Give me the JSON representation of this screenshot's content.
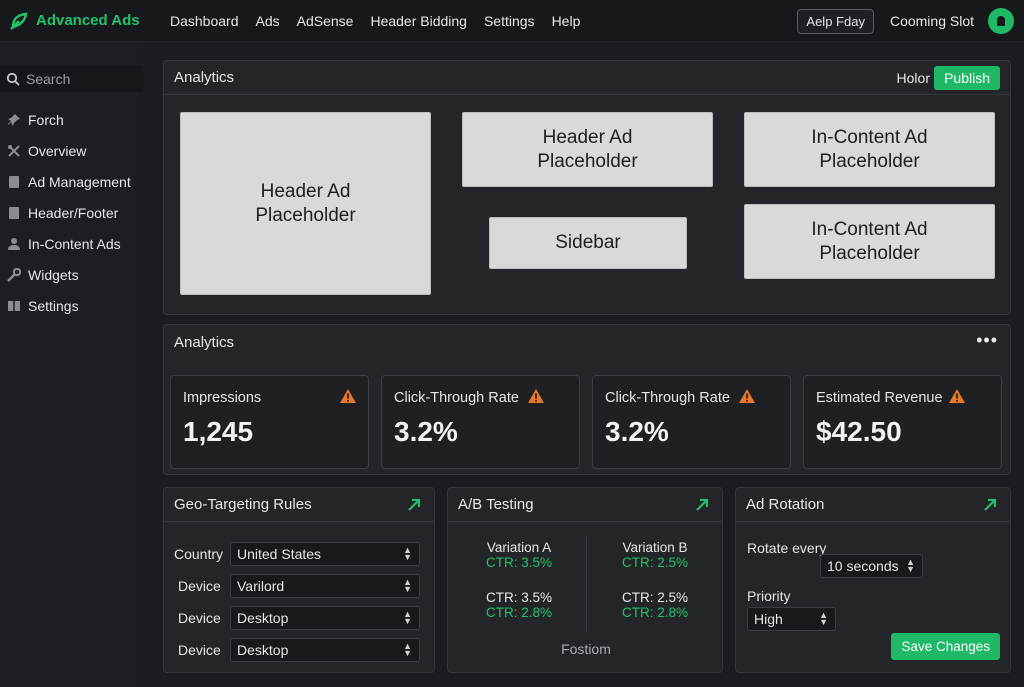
{
  "brand": {
    "name": "Advanced Ads",
    "accent": "#22c36b"
  },
  "nav": [
    "Dashboard",
    "Ads",
    "AdSense",
    "Header Bidding",
    "Settings",
    "Help"
  ],
  "topright": {
    "help_label": "Aelp Fday",
    "coming_label": "Cooming Slot"
  },
  "sidebar": {
    "search_placeholder": "Search",
    "items": [
      {
        "label": "Forch",
        "icon": "pin-icon"
      },
      {
        "label": "Overview",
        "icon": "tools-icon"
      },
      {
        "label": "Ad Management",
        "icon": "card-icon"
      },
      {
        "label": "Header/Footer",
        "icon": "card-icon"
      },
      {
        "label": "In-Content Ads",
        "icon": "user-icon"
      },
      {
        "label": "Widgets",
        "icon": "wrench-icon"
      },
      {
        "label": "Settings",
        "icon": "grid-icon"
      }
    ]
  },
  "layout_panel": {
    "title": "Analytics",
    "holor_label": "Holor",
    "publish_label": "Publish",
    "placeholders": {
      "header_large": "Header Ad\nPlaceholder",
      "header_small": "Header Ad\nPlaceholder",
      "incontent_1": "In-Content Ad\nPlaceholder",
      "sidebar": "Sidebar",
      "incontent_2": "In-Content Ad\nPlaceholder"
    }
  },
  "analytics": {
    "title": "Analytics",
    "more_label": "•••",
    "metrics": [
      {
        "label": "Impressions",
        "value": "1,245"
      },
      {
        "label": "Click-Through Rate",
        "value": "3.2%"
      },
      {
        "label": "Click-Through Rate",
        "value": "3.2%"
      },
      {
        "label": "Estimated Revenue",
        "value": "$42.50"
      }
    ]
  },
  "geo": {
    "title": "Geo-Targeting Rules",
    "rows": [
      {
        "label": "Country",
        "value": "United States"
      },
      {
        "label": "Device",
        "value": "Varilord"
      },
      {
        "label": "Device",
        "value": "Desktop"
      },
      {
        "label": "Device",
        "value": "Desktop"
      }
    ]
  },
  "ab": {
    "title": "A/B Testing",
    "a": {
      "name": "Variation A",
      "ctr1": "CTR: 3.5%",
      "ctr2": "CTR: 3.5%",
      "ctr3": "CTR: 2.8%"
    },
    "b": {
      "name": "Variation B",
      "ctr1": "CTR: 2.5%",
      "ctr2": "CTR: 2.5%",
      "ctr3": "CTR: 2.8%"
    },
    "footer": "Fostiom"
  },
  "rotation": {
    "title": "Ad Rotation",
    "rotate_label": "Rotate every",
    "rotate_value": "10 seconds",
    "priority_label": "Priority",
    "priority_value": "High",
    "save_label": "Save Changes"
  }
}
